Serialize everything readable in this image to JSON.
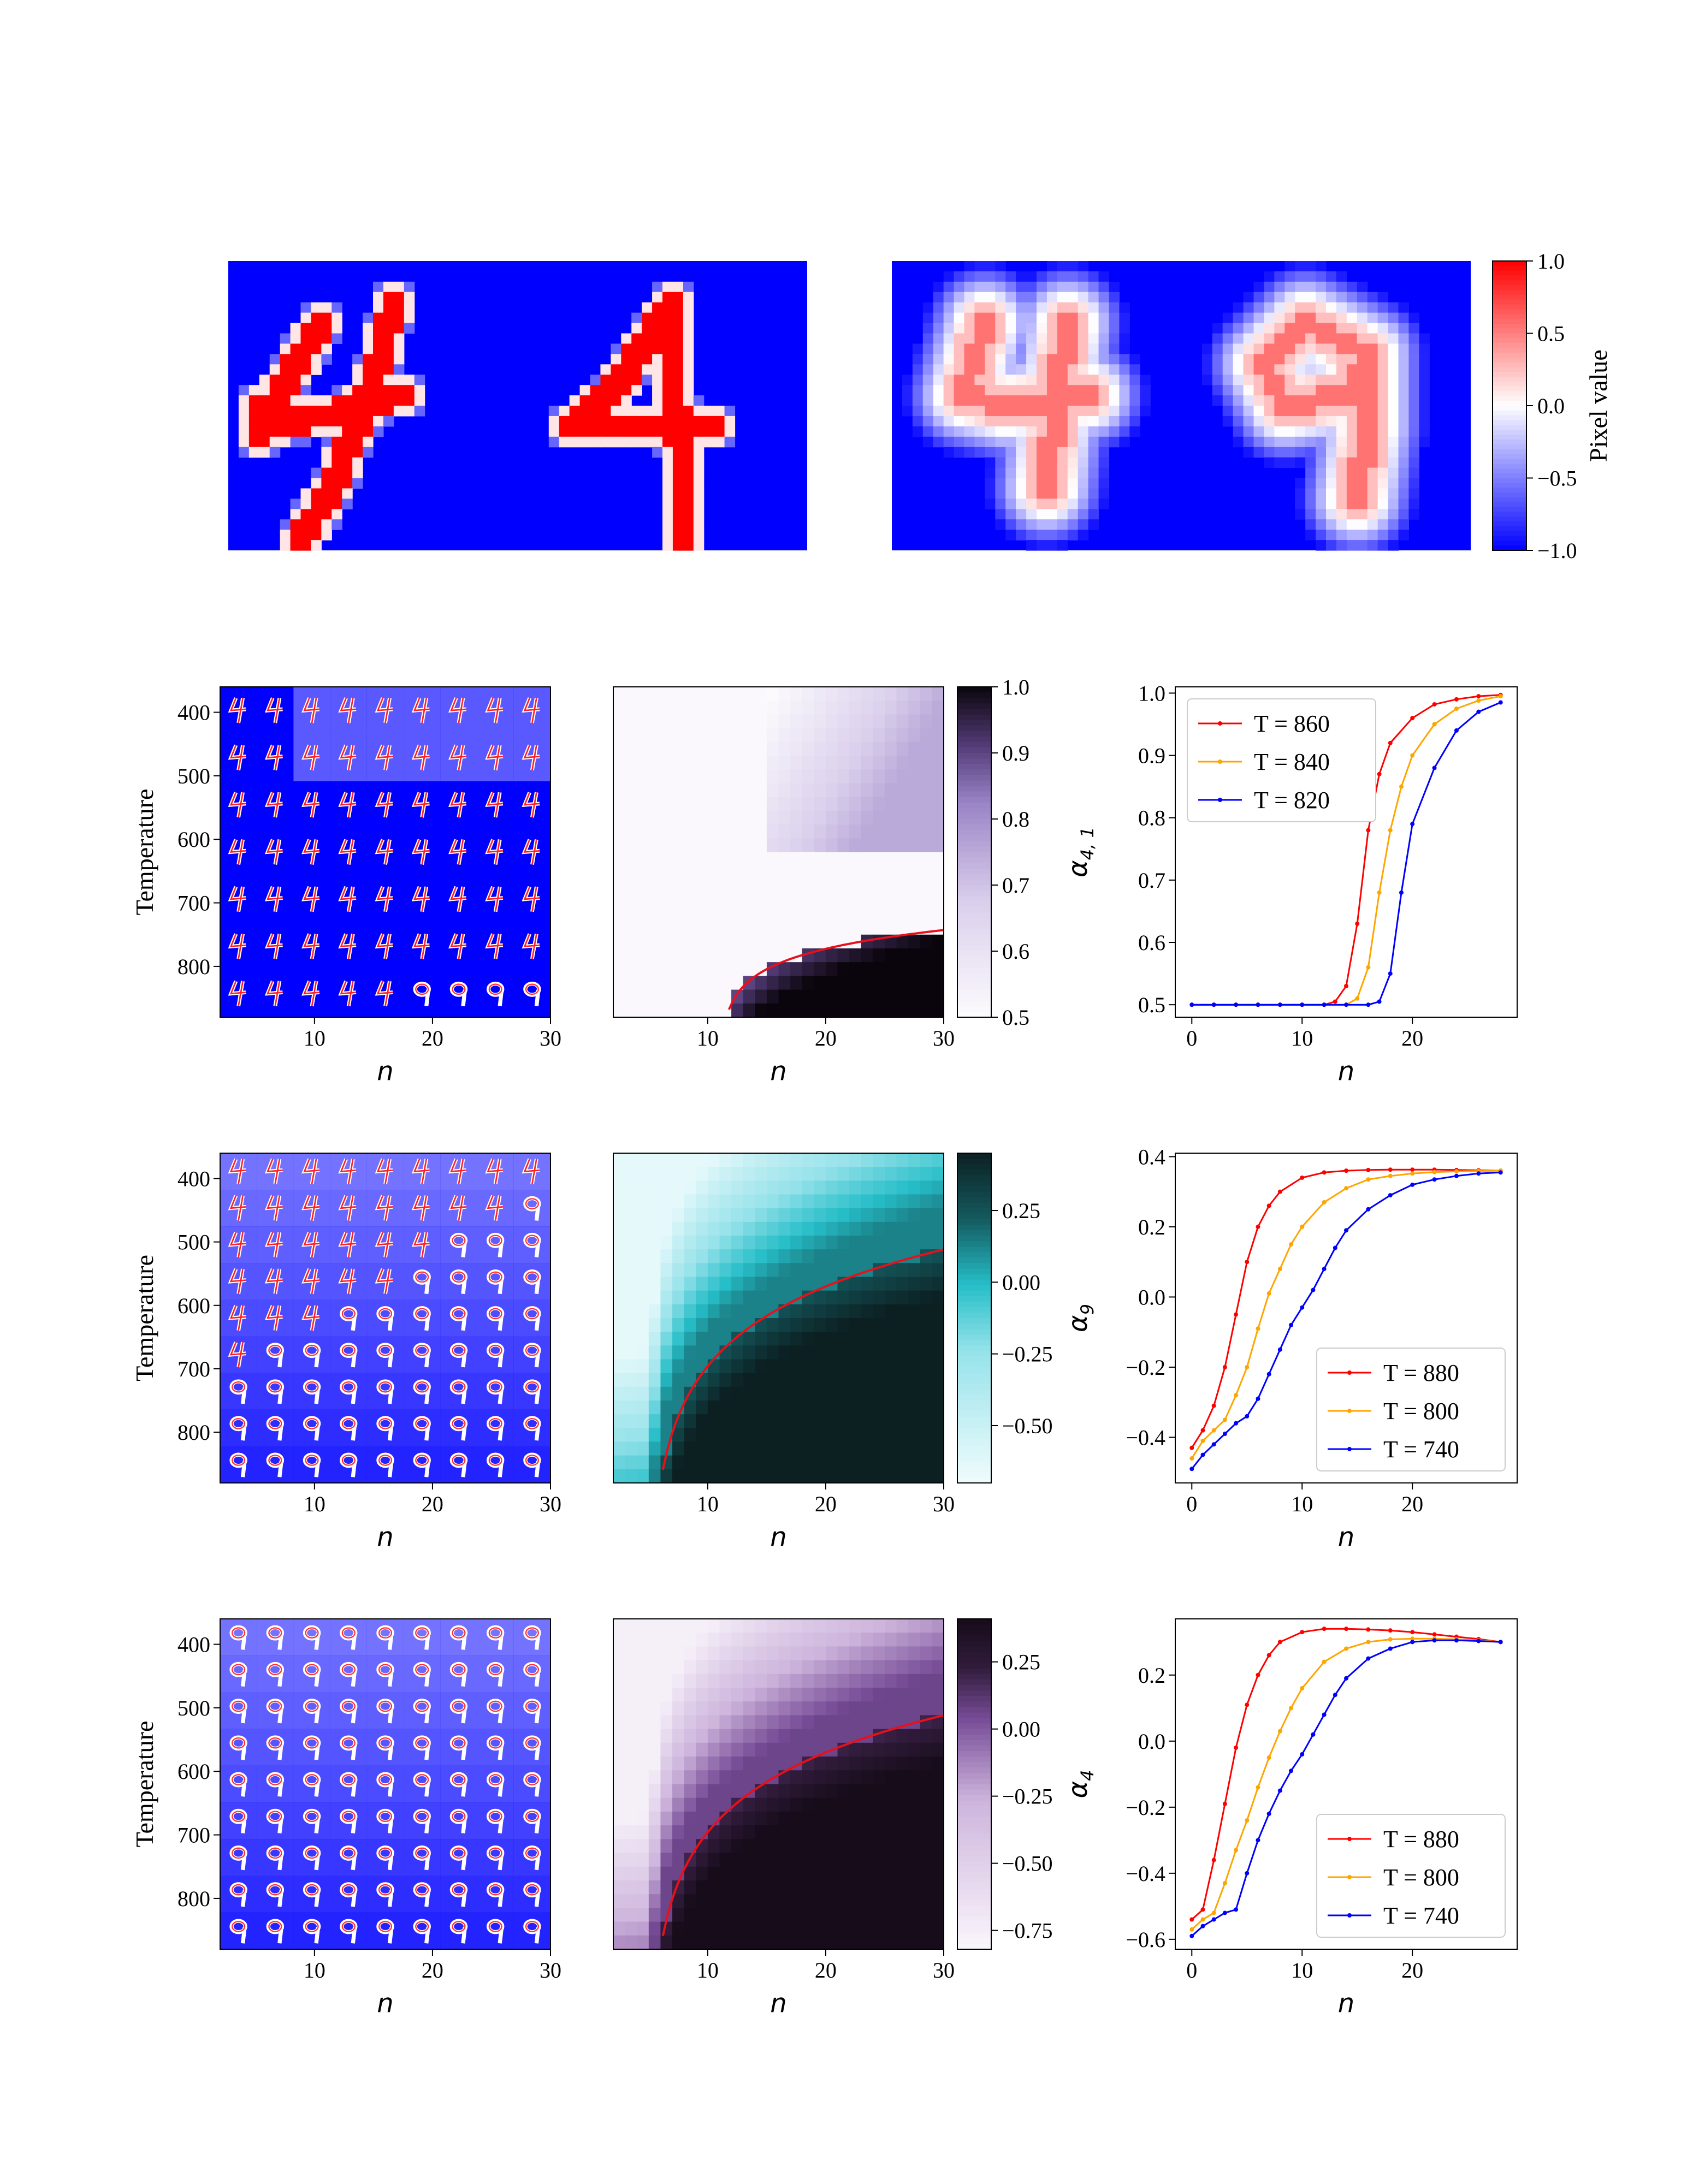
{
  "chart_data": [
    {
      "type": "heatmap",
      "panel": "top-left",
      "content": "digit image",
      "digits": [
        "4",
        "4"
      ],
      "colormap": "bwr"
    },
    {
      "type": "heatmap",
      "panel": "top-right",
      "content": "digit image",
      "digits": [
        "4",
        "9"
      ],
      "colorbar": {
        "label": "Pixel value",
        "ticks": [
          "1.0",
          "0.5",
          "0.0",
          "−0.5",
          "−1.0"
        ],
        "range": [
          -1.0,
          1.0
        ]
      }
    },
    {
      "type": "heatmap",
      "row": 1,
      "content": "grid of generated digit images",
      "ylabel": "Temperature",
      "xlabel": "n",
      "yticks": [
        "400",
        "500",
        "600",
        "700",
        "800"
      ],
      "xticks": [
        "10",
        "20",
        "30"
      ],
      "grid_rows": 7,
      "grid_cols": 9
    },
    {
      "type": "heatmap",
      "row": 1,
      "xlabel": "n",
      "xticks": [
        "10",
        "20",
        "30"
      ],
      "colorbar": {
        "ticks": [
          "1.0",
          "0.9",
          "0.8",
          "0.7",
          "0.6",
          "0.5"
        ],
        "range": [
          0.5,
          1.0
        ],
        "colormap": "Purples"
      }
    },
    {
      "type": "line",
      "row": 1,
      "xlabel": "n",
      "ylabel": "α",
      "ylabel_sub": "4, 1",
      "xticks": [
        "0",
        "10",
        "20"
      ],
      "yticks": [
        "0.5",
        "0.6",
        "0.7",
        "0.8",
        "0.9",
        "1.0"
      ],
      "xlim": [
        -1.5,
        29.5
      ],
      "ylim": [
        0.48,
        1.01
      ],
      "legend": "top-left",
      "series": [
        {
          "name": "T = 860",
          "color": "#ff0000",
          "x": [
            0,
            2,
            4,
            6,
            8,
            10,
            12,
            13,
            14,
            15,
            16,
            17,
            18,
            20,
            22,
            24,
            26,
            28
          ],
          "y": [
            0.5,
            0.5,
            0.5,
            0.5,
            0.5,
            0.5,
            0.5,
            0.505,
            0.53,
            0.63,
            0.78,
            0.87,
            0.92,
            0.96,
            0.982,
            0.99,
            0.995,
            0.997
          ]
        },
        {
          "name": "T = 840",
          "color": "#ffa500",
          "x": [
            0,
            2,
            4,
            6,
            8,
            10,
            12,
            14,
            15,
            16,
            17,
            18,
            19,
            20,
            22,
            24,
            26,
            28
          ],
          "y": [
            0.5,
            0.5,
            0.5,
            0.5,
            0.5,
            0.5,
            0.5,
            0.5,
            0.51,
            0.56,
            0.68,
            0.78,
            0.85,
            0.9,
            0.95,
            0.975,
            0.988,
            0.995
          ]
        },
        {
          "name": "T = 820",
          "color": "#0000ff",
          "x": [
            0,
            2,
            4,
            6,
            8,
            10,
            12,
            14,
            16,
            17,
            18,
            19,
            20,
            22,
            24,
            26,
            28
          ],
          "y": [
            0.5,
            0.5,
            0.5,
            0.5,
            0.5,
            0.5,
            0.5,
            0.5,
            0.5,
            0.505,
            0.55,
            0.68,
            0.79,
            0.88,
            0.94,
            0.97,
            0.985
          ]
        }
      ]
    },
    {
      "type": "heatmap",
      "row": 2,
      "content": "grid of generated digit images",
      "ylabel": "Temperature",
      "xlabel": "n",
      "yticks": [
        "400",
        "500",
        "600",
        "700",
        "800"
      ],
      "xticks": [
        "10",
        "20",
        "30"
      ],
      "grid_rows": 9,
      "grid_cols": 9
    },
    {
      "type": "heatmap",
      "row": 2,
      "xlabel": "n",
      "xticks": [
        "10",
        "20",
        "30"
      ],
      "colorbar": {
        "ticks": [
          "0.25",
          "0.00",
          "−0.25",
          "−0.50"
        ],
        "range": [
          -0.7,
          0.45
        ],
        "colormap": "teal"
      }
    },
    {
      "type": "line",
      "row": 2,
      "xlabel": "n",
      "ylabel": "α",
      "ylabel_sub": "9",
      "xticks": [
        "0",
        "10",
        "20"
      ],
      "yticks": [
        "−0.4",
        "−0.2",
        "0.0",
        "0.2",
        "0.4"
      ],
      "xlim": [
        -1.5,
        29.5
      ],
      "ylim": [
        -0.53,
        0.41
      ],
      "legend": "lower-right",
      "series": [
        {
          "name": "T = 880",
          "color": "#ff0000",
          "x": [
            0,
            1,
            2,
            3,
            4,
            5,
            6,
            7,
            8,
            10,
            12,
            14,
            16,
            18,
            20,
            22,
            24,
            26,
            28
          ],
          "y": [
            -0.43,
            -0.38,
            -0.31,
            -0.2,
            -0.05,
            0.1,
            0.2,
            0.26,
            0.3,
            0.34,
            0.355,
            0.36,
            0.362,
            0.363,
            0.363,
            0.363,
            0.362,
            0.361,
            0.36
          ]
        },
        {
          "name": "T = 800",
          "color": "#ffa500",
          "x": [
            0,
            1,
            2,
            3,
            4,
            5,
            6,
            7,
            8,
            9,
            10,
            12,
            14,
            16,
            18,
            20,
            22,
            24,
            26,
            28
          ],
          "y": [
            -0.46,
            -0.41,
            -0.38,
            -0.35,
            -0.28,
            -0.2,
            -0.09,
            0.01,
            0.08,
            0.15,
            0.2,
            0.27,
            0.31,
            0.335,
            0.345,
            0.352,
            0.356,
            0.358,
            0.359,
            0.36
          ]
        },
        {
          "name": "T = 740",
          "color": "#0000ff",
          "x": [
            0,
            1,
            2,
            3,
            4,
            5,
            6,
            7,
            8,
            9,
            10,
            11,
            12,
            13,
            14,
            16,
            18,
            20,
            22,
            24,
            26,
            28
          ],
          "y": [
            -0.49,
            -0.45,
            -0.42,
            -0.39,
            -0.36,
            -0.34,
            -0.29,
            -0.22,
            -0.15,
            -0.08,
            -0.03,
            0.02,
            0.08,
            0.14,
            0.19,
            0.25,
            0.29,
            0.32,
            0.335,
            0.345,
            0.352,
            0.355
          ]
        }
      ]
    },
    {
      "type": "heatmap",
      "row": 3,
      "content": "grid of generated digit images",
      "ylabel": "Temperature",
      "xlabel": "n",
      "yticks": [
        "400",
        "500",
        "600",
        "700",
        "800"
      ],
      "xticks": [
        "10",
        "20",
        "30"
      ],
      "grid_rows": 9,
      "grid_cols": 9
    },
    {
      "type": "heatmap",
      "row": 3,
      "xlabel": "n",
      "xticks": [
        "10",
        "20",
        "30"
      ],
      "colorbar": {
        "ticks": [
          "0.25",
          "0.00",
          "−0.25",
          "−0.50",
          "−0.75"
        ],
        "range": [
          -0.82,
          0.41
        ],
        "colormap": "Purples-black"
      }
    },
    {
      "type": "line",
      "row": 3,
      "xlabel": "n",
      "ylabel": "α",
      "ylabel_sub": "4",
      "xticks": [
        "0",
        "10",
        "20"
      ],
      "yticks": [
        "−0.6",
        "−0.4",
        "−0.2",
        "0.0",
        "0.2"
      ],
      "xlim": [
        -1.5,
        29.5
      ],
      "ylim": [
        -0.63,
        0.37
      ],
      "legend": "lower-right",
      "series": [
        {
          "name": "T = 880",
          "color": "#ff0000",
          "x": [
            0,
            1,
            2,
            3,
            4,
            5,
            6,
            7,
            8,
            10,
            12,
            14,
            16,
            18,
            20,
            22,
            24,
            26,
            28
          ],
          "y": [
            -0.54,
            -0.51,
            -0.36,
            -0.19,
            -0.02,
            0.11,
            0.2,
            0.26,
            0.3,
            0.33,
            0.34,
            0.34,
            0.338,
            0.335,
            0.33,
            0.323,
            0.316,
            0.309,
            0.3
          ]
        },
        {
          "name": "T = 800",
          "color": "#ffa500",
          "x": [
            0,
            1,
            2,
            3,
            4,
            5,
            6,
            7,
            8,
            9,
            10,
            12,
            14,
            16,
            18,
            20,
            22,
            24,
            26,
            28
          ],
          "y": [
            -0.57,
            -0.54,
            -0.52,
            -0.43,
            -0.33,
            -0.24,
            -0.14,
            -0.05,
            0.03,
            0.1,
            0.16,
            0.24,
            0.28,
            0.3,
            0.308,
            0.31,
            0.31,
            0.308,
            0.305,
            0.3
          ]
        },
        {
          "name": "T = 740",
          "color": "#0000ff",
          "x": [
            0,
            1,
            2,
            3,
            4,
            5,
            6,
            7,
            8,
            9,
            10,
            11,
            12,
            13,
            14,
            16,
            18,
            20,
            22,
            24,
            26,
            28
          ],
          "y": [
            -0.59,
            -0.56,
            -0.54,
            -0.52,
            -0.51,
            -0.4,
            -0.3,
            -0.22,
            -0.15,
            -0.09,
            -0.04,
            0.02,
            0.08,
            0.14,
            0.19,
            0.25,
            0.28,
            0.3,
            0.305,
            0.305,
            0.303,
            0.3
          ]
        }
      ]
    }
  ]
}
